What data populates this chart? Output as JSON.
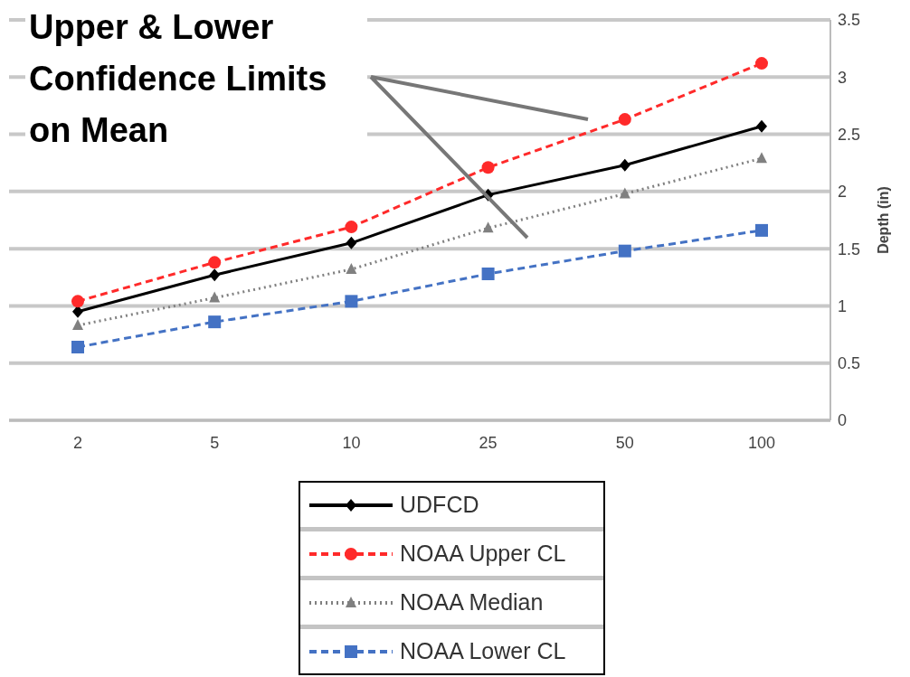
{
  "chart_data": {
    "type": "line",
    "categories": [
      "2",
      "5",
      "10",
      "25",
      "50",
      "100"
    ],
    "series": [
      {
        "name": "UDFCD",
        "color": "#000000",
        "marker": "diamond",
        "line_style": "solid",
        "values": [
          0.95,
          1.27,
          1.55,
          1.97,
          2.23,
          2.57
        ]
      },
      {
        "name": "NOAA Upper CL",
        "color": "#ff2a2a",
        "marker": "circle",
        "line_style": "dashed",
        "values": [
          1.04,
          1.38,
          1.69,
          2.21,
          2.63,
          3.12
        ]
      },
      {
        "name": "NOAA Median",
        "color": "#808080",
        "marker": "triangle",
        "line_style": "dotted",
        "values": [
          0.83,
          1.07,
          1.32,
          1.68,
          1.98,
          2.29
        ]
      },
      {
        "name": "NOAA Lower CL",
        "color": "#4472c4",
        "marker": "square",
        "line_style": "dashed",
        "values": [
          0.64,
          0.86,
          1.04,
          1.28,
          1.48,
          1.66
        ]
      }
    ],
    "ylabel": "Depth (in)",
    "ylim": [
      0,
      3.5
    ],
    "yticks": [
      0,
      0.5,
      1,
      1.5,
      2,
      2.5,
      3,
      3.5
    ],
    "grid": "y",
    "legend": "bottom",
    "annotations": [
      "Upper & Lower Confidence Limits on Mean"
    ]
  }
}
